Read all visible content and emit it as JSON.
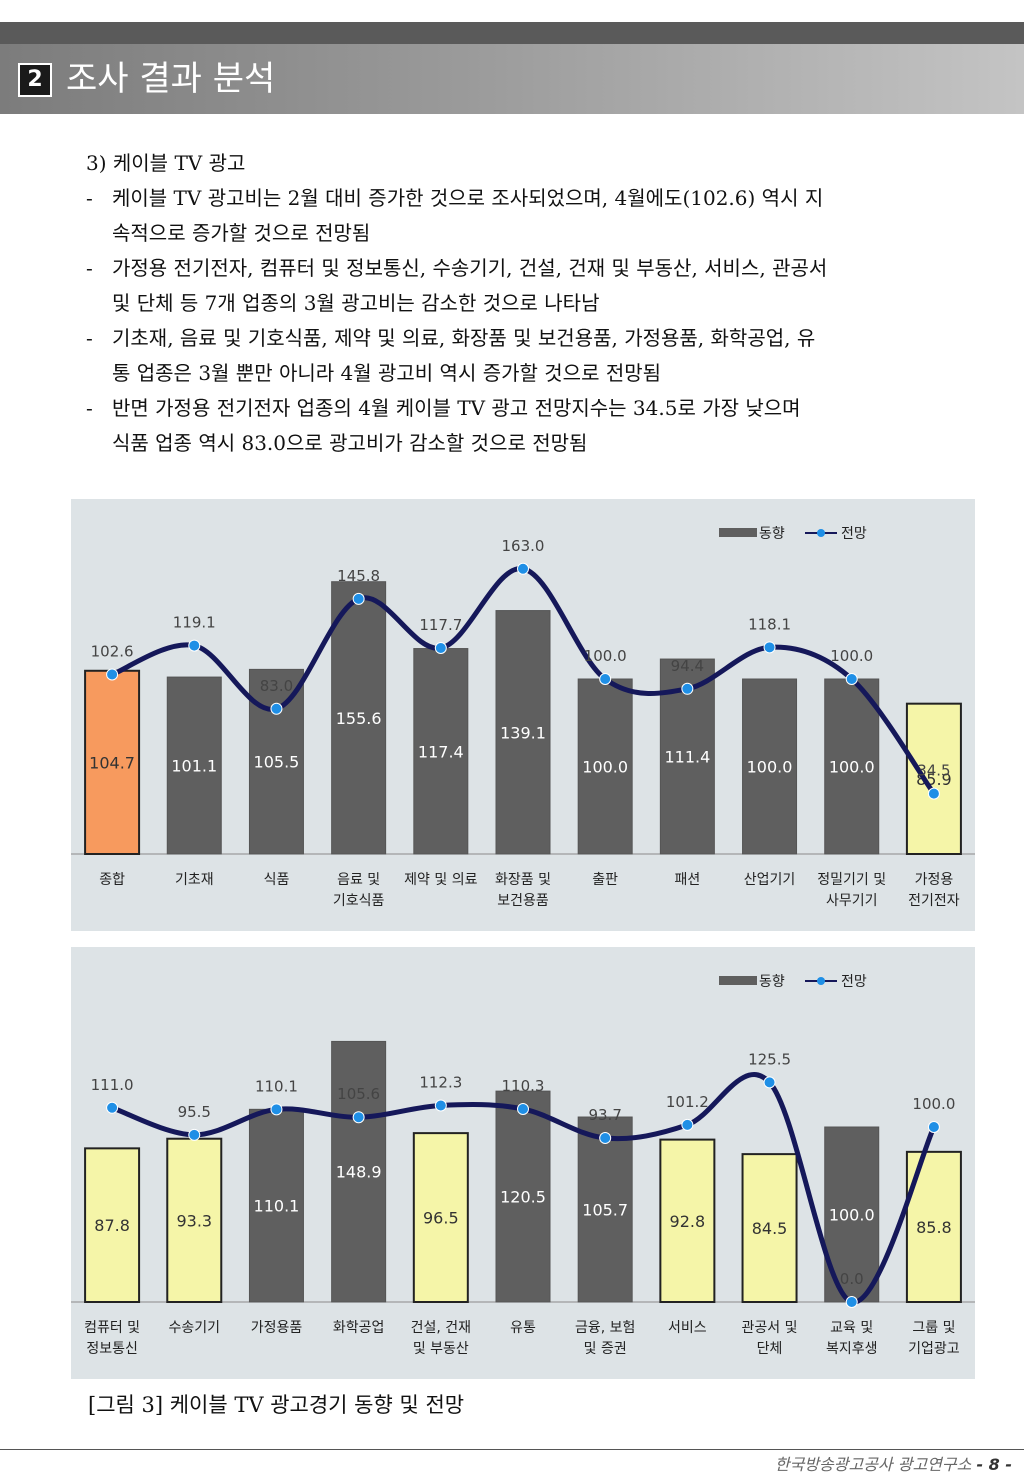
{
  "header": {
    "number": "2",
    "title": "조사 결과 분석"
  },
  "section": {
    "subtitle": "3) 케이블 TV 광고",
    "bullets": [
      [
        "케이블 TV 광고비는 2월 대비 증가한 것으로 조사되었으며, 4월에도(102.6) 역시 지",
        "속적으로 증가할 것으로 전망됨"
      ],
      [
        "가정용 전기전자, 컴퓨터 및 정보통신, 수송기기, 건설, 건재 및 부동산, 서비스, 관공서",
        "및 단체 등 7개 업종의 3월 광고비는 감소한 것으로 나타남"
      ],
      [
        "기초재, 음료 및 기호식품, 제약 및 의료, 화장품 및 보건용품, 가정용품, 화학공업, 유",
        "통 업종은 3월 뿐만 아니라 4월 광고비 역시 증가할 것으로 전망됨"
      ],
      [
        "반면 가정용 전기전자 업종의 4월 케이블 TV 광고 전망지수는 34.5로 가장  낮으며",
        "식품 업종 역시 83.0으로 광고비가 감소할 것으로 전망됨"
      ]
    ]
  },
  "colors": {
    "bar_dark": "#5f5f5f",
    "bar_orange": "#f79a5e",
    "bar_yellow": "#f5f5a8",
    "line": "#15185a",
    "dot": "#1f8fe6",
    "bg": "#dde3e6"
  },
  "chart_data": [
    {
      "type": "bar",
      "title": "",
      "legend": [
        "동향",
        "전망"
      ],
      "legend_position": "top-right",
      "ylim": [
        0,
        180
      ],
      "categories": [
        [
          "종합"
        ],
        [
          "기초재"
        ],
        [
          "식품"
        ],
        [
          "음료 및",
          "기호식품"
        ],
        [
          "제약 및 의료"
        ],
        [
          "화장품 및",
          "보건용품"
        ],
        [
          "출판"
        ],
        [
          "패션"
        ],
        [
          "산업기기"
        ],
        [
          "정밀기기 및",
          "사무기기"
        ],
        [
          "가정용",
          "전기전자"
        ]
      ],
      "series": [
        {
          "name": "동향",
          "type": "bar",
          "values": [
            104.7,
            101.1,
            105.5,
            155.6,
            117.4,
            139.1,
            100.0,
            111.4,
            100.0,
            100.0,
            85.9
          ],
          "labels": [
            "104.7",
            "101.1",
            "105.5",
            "155.6",
            "117.4",
            "139.1",
            "100.0",
            "111.4",
            "100.0",
            "100.0",
            "85.9"
          ],
          "styles": [
            "orange",
            "dark",
            "dark",
            "dark",
            "dark",
            "dark",
            "dark",
            "dark",
            "dark",
            "dark",
            "yellow"
          ]
        },
        {
          "name": "전망",
          "type": "line",
          "values": [
            102.6,
            119.1,
            83.0,
            145.8,
            117.7,
            163.0,
            100.0,
            94.4,
            118.1,
            100.0,
            34.5
          ],
          "labels": [
            "102.6",
            "119.1",
            "83.0",
            "145.8",
            "117.7",
            "163.0",
            "100.0",
            "94.4",
            "118.1",
            "100.0",
            "34.5"
          ]
        }
      ]
    },
    {
      "type": "bar",
      "title": "",
      "legend": [
        "동향",
        "전망"
      ],
      "legend_position": "top-right",
      "ylim": [
        0,
        180
      ],
      "categories": [
        [
          "컴퓨터 및",
          "정보통신"
        ],
        [
          "수송기기"
        ],
        [
          "가정용품"
        ],
        [
          "화학공업"
        ],
        [
          "건설, 건재",
          "및 부동산"
        ],
        [
          "유통"
        ],
        [
          "금융, 보험",
          "및 증권"
        ],
        [
          "서비스"
        ],
        [
          "관공서 및",
          "단체"
        ],
        [
          "교육 및",
          "복지후생"
        ],
        [
          "그룹 및",
          "기업광고"
        ]
      ],
      "series": [
        {
          "name": "동향",
          "type": "bar",
          "values": [
            87.8,
            93.3,
            110.1,
            148.9,
            96.5,
            120.5,
            105.7,
            92.8,
            84.5,
            100.0,
            85.8
          ],
          "labels": [
            "87.8",
            "93.3",
            "110.1",
            "148.9",
            "96.5",
            "120.5",
            "105.7",
            "92.8",
            "84.5",
            "100.0",
            "85.8"
          ],
          "styles": [
            "yellow",
            "yellow",
            "dark",
            "dark",
            "yellow",
            "dark",
            "dark",
            "yellow",
            "yellow",
            "dark",
            "yellow"
          ]
        },
        {
          "name": "전망",
          "type": "line",
          "values": [
            111.0,
            95.5,
            110.1,
            105.6,
            112.3,
            110.3,
            93.7,
            101.2,
            125.5,
            0.0,
            100.0
          ],
          "labels": [
            "111.0",
            "95.5",
            "110.1",
            "105.6",
            "112.3",
            "110.3",
            "93.7",
            "101.2",
            "125.5",
            "0.0",
            "100.0"
          ]
        }
      ]
    }
  ],
  "caption": "[그림 3] 케이블 TV 광고경기 동향 및 전망",
  "footer": {
    "org": "한국방송광고공사 광고연구소",
    "page": "- 8 -"
  }
}
